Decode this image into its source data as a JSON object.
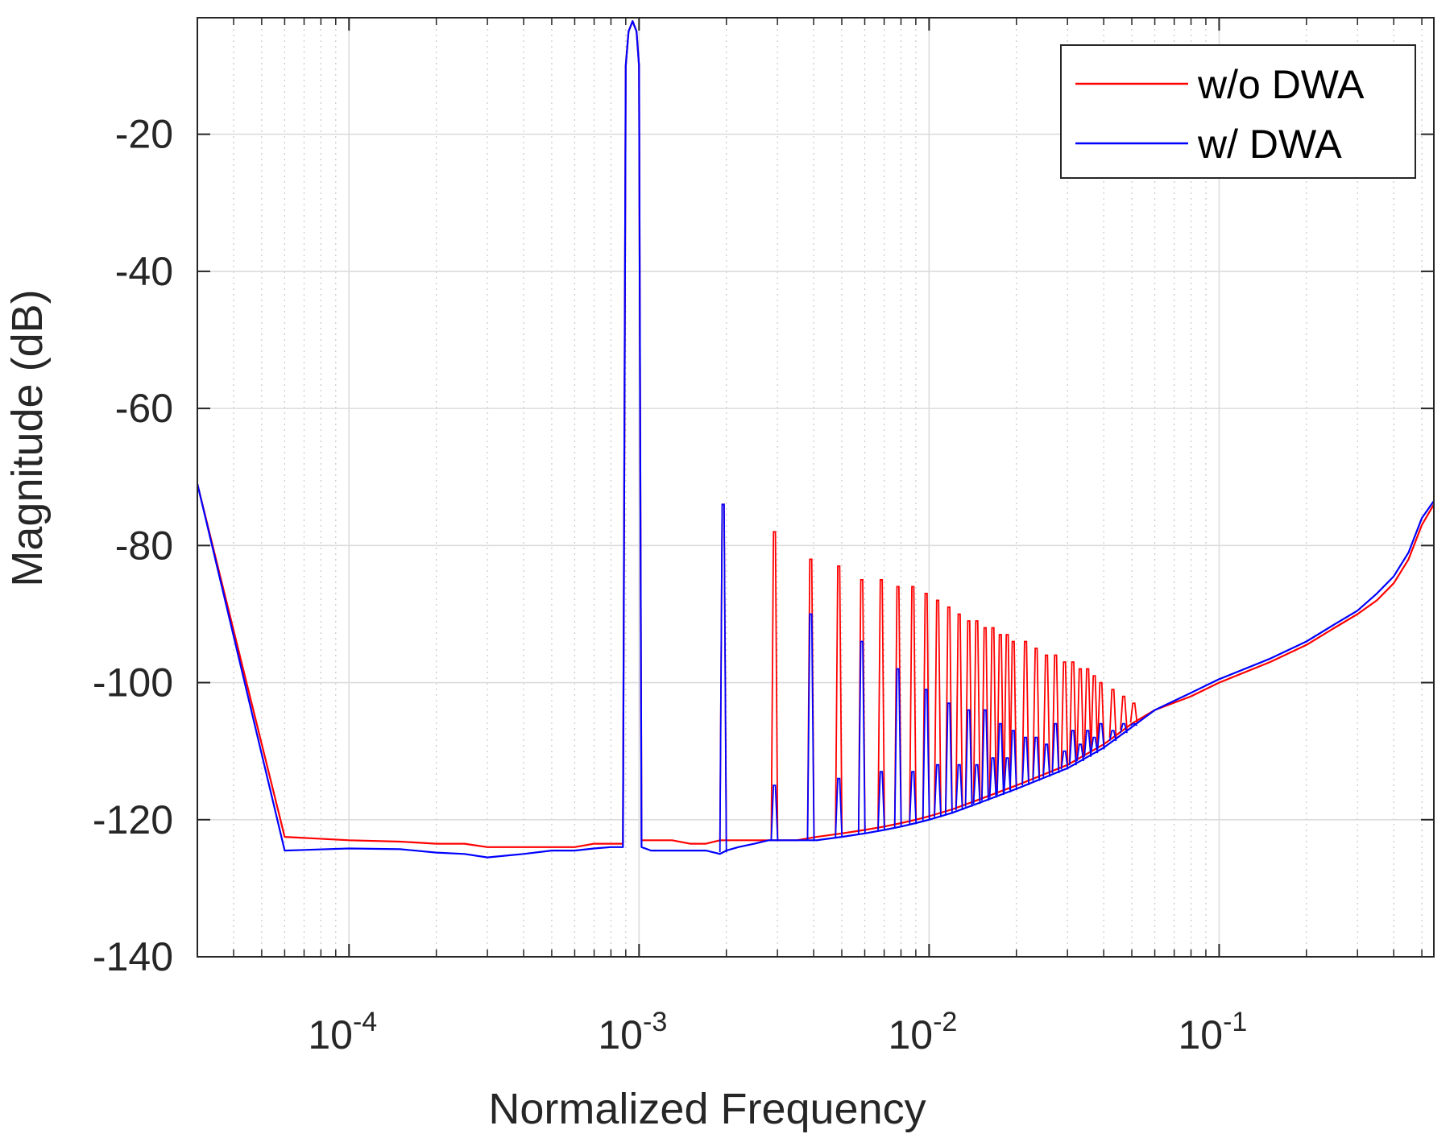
{
  "chart_data": {
    "type": "line",
    "title": "",
    "xlabel": "Normalized Frequency",
    "ylabel": "Magnitude (dB)",
    "xscale": "log",
    "xlim": [
      3e-05,
      0.55
    ],
    "ylim": [
      -140,
      -3
    ],
    "x_ticks": [
      {
        "value": 0.0001,
        "base": "10",
        "exp": "-4"
      },
      {
        "value": 0.001,
        "base": "10",
        "exp": "-3"
      },
      {
        "value": 0.01,
        "base": "10",
        "exp": "-2"
      },
      {
        "value": 0.1,
        "base": "10",
        "exp": "-1"
      }
    ],
    "y_ticks": [
      {
        "value": -20,
        "label": "-20"
      },
      {
        "value": -40,
        "label": "-40"
      },
      {
        "value": -60,
        "label": "-60"
      },
      {
        "value": -80,
        "label": "-80"
      },
      {
        "value": -100,
        "label": "-100"
      },
      {
        "value": -120,
        "label": "-120"
      },
      {
        "value": -140,
        "label": "-140"
      }
    ],
    "grid": true,
    "minor_grid": true,
    "legend_position": "top-right",
    "fundamental": {
      "x": 0.000977,
      "y": -3.5
    },
    "series": [
      {
        "name": "w/o DWA",
        "color": "#ff0000",
        "x": [
          3e-05,
          6e-05,
          0.0001,
          0.00015,
          0.0002,
          0.00025,
          0.0003,
          0.0004,
          0.0005,
          0.0006,
          0.0007,
          0.0008,
          0.00088,
          0.0009,
          0.00092,
          0.00095,
          0.00098,
          0.001,
          0.00102,
          0.0011,
          0.0013,
          0.0015,
          0.0017,
          0.0019,
          0.002,
          0.0022,
          0.0025,
          0.0028,
          0.0031,
          0.0035,
          0.0041,
          0.005,
          0.006,
          0.007,
          0.008,
          0.009,
          0.01,
          0.012,
          0.015,
          0.02,
          0.03,
          0.04,
          0.05,
          0.06,
          0.08,
          0.1,
          0.15,
          0.2,
          0.25,
          0.3,
          0.35,
          0.4,
          0.45,
          0.5,
          0.55
        ],
        "y": [
          -71,
          -122.5,
          -123,
          -123.2,
          -123.5,
          -123.5,
          -124,
          -124,
          -124,
          -124,
          -123.5,
          -123.5,
          -123.5,
          -10,
          -5,
          -3.5,
          -5,
          -10,
          -123,
          -123,
          -123,
          -123.5,
          -123.5,
          -123,
          -123,
          -123,
          -123,
          -123,
          -123,
          -123,
          -122.5,
          -122,
          -121.5,
          -121,
          -120.5,
          -120,
          -119.5,
          -118.5,
          -117,
          -115,
          -112,
          -109,
          -106,
          -104,
          -102,
          -100,
          -97,
          -94.5,
          -92,
          -90,
          -88,
          -85.5,
          -82,
          -77,
          -74
        ],
        "harmonics": [
          {
            "x": 0.00195,
            "y": -74
          },
          {
            "x": 0.00293,
            "y": -78
          },
          {
            "x": 0.00391,
            "y": -82
          },
          {
            "x": 0.00488,
            "y": -83
          },
          {
            "x": 0.00586,
            "y": -85
          },
          {
            "x": 0.00684,
            "y": -85
          },
          {
            "x": 0.00781,
            "y": -86
          },
          {
            "x": 0.00879,
            "y": -86
          },
          {
            "x": 0.00977,
            "y": -87
          },
          {
            "x": 0.0107,
            "y": -88
          },
          {
            "x": 0.0117,
            "y": -89
          },
          {
            "x": 0.0127,
            "y": -90
          },
          {
            "x": 0.0137,
            "y": -91
          },
          {
            "x": 0.0146,
            "y": -91
          },
          {
            "x": 0.0156,
            "y": -92
          },
          {
            "x": 0.0166,
            "y": -92
          },
          {
            "x": 0.0176,
            "y": -93
          },
          {
            "x": 0.0186,
            "y": -93
          },
          {
            "x": 0.0195,
            "y": -94
          },
          {
            "x": 0.0215,
            "y": -94
          },
          {
            "x": 0.0234,
            "y": -95
          },
          {
            "x": 0.0254,
            "y": -96
          },
          {
            "x": 0.0273,
            "y": -96
          },
          {
            "x": 0.0293,
            "y": -97
          },
          {
            "x": 0.0313,
            "y": -97
          },
          {
            "x": 0.0332,
            "y": -98
          },
          {
            "x": 0.0352,
            "y": -98
          },
          {
            "x": 0.0371,
            "y": -99
          },
          {
            "x": 0.0391,
            "y": -100
          },
          {
            "x": 0.043,
            "y": -101
          },
          {
            "x": 0.0469,
            "y": -102
          },
          {
            "x": 0.0508,
            "y": -103
          }
        ]
      },
      {
        "name": "w/ DWA",
        "color": "#0000ff",
        "x": [
          3e-05,
          6e-05,
          0.0001,
          0.00015,
          0.0002,
          0.00025,
          0.0003,
          0.0004,
          0.0005,
          0.0006,
          0.0007,
          0.0008,
          0.00088,
          0.0009,
          0.00092,
          0.00095,
          0.00098,
          0.001,
          0.00102,
          0.0011,
          0.0013,
          0.0015,
          0.0017,
          0.0019,
          0.002,
          0.0022,
          0.0025,
          0.0028,
          0.0031,
          0.0035,
          0.0041,
          0.005,
          0.006,
          0.007,
          0.008,
          0.009,
          0.01,
          0.012,
          0.015,
          0.02,
          0.03,
          0.04,
          0.05,
          0.06,
          0.08,
          0.1,
          0.15,
          0.2,
          0.25,
          0.3,
          0.35,
          0.4,
          0.45,
          0.5,
          0.55
        ],
        "y": [
          -71,
          -124.5,
          -124.2,
          -124.3,
          -124.8,
          -125,
          -125.5,
          -125,
          -124.5,
          -124.5,
          -124.2,
          -124,
          -124,
          -10,
          -5,
          -3.5,
          -5,
          -10,
          -124,
          -124.5,
          -124.5,
          -124.5,
          -124.5,
          -125,
          -124.5,
          -124,
          -123.5,
          -123,
          -123,
          -123,
          -123,
          -122.5,
          -122,
          -121.5,
          -121,
          -120.5,
          -120,
          -119,
          -117.5,
          -115.5,
          -112.5,
          -109.5,
          -106.5,
          -104,
          -101.5,
          -99.5,
          -96.5,
          -94,
          -91.5,
          -89.5,
          -87,
          -84.5,
          -81,
          -76,
          -73.5
        ],
        "harmonics": [
          {
            "x": 0.00195,
            "y": -74
          },
          {
            "x": 0.00293,
            "y": -115
          },
          {
            "x": 0.00391,
            "y": -90
          },
          {
            "x": 0.00488,
            "y": -114
          },
          {
            "x": 0.00586,
            "y": -94
          },
          {
            "x": 0.00684,
            "y": -113
          },
          {
            "x": 0.00781,
            "y": -98
          },
          {
            "x": 0.00879,
            "y": -113
          },
          {
            "x": 0.00977,
            "y": -101
          },
          {
            "x": 0.0107,
            "y": -112
          },
          {
            "x": 0.0117,
            "y": -103
          },
          {
            "x": 0.0127,
            "y": -112
          },
          {
            "x": 0.0137,
            "y": -104
          },
          {
            "x": 0.0146,
            "y": -112
          },
          {
            "x": 0.0156,
            "y": -104
          },
          {
            "x": 0.0166,
            "y": -111
          },
          {
            "x": 0.0176,
            "y": -106
          },
          {
            "x": 0.0186,
            "y": -111
          },
          {
            "x": 0.0195,
            "y": -107
          },
          {
            "x": 0.0215,
            "y": -108
          },
          {
            "x": 0.0234,
            "y": -108
          },
          {
            "x": 0.0254,
            "y": -109
          },
          {
            "x": 0.0273,
            "y": -106
          },
          {
            "x": 0.0293,
            "y": -110
          },
          {
            "x": 0.0313,
            "y": -107
          },
          {
            "x": 0.0332,
            "y": -109
          },
          {
            "x": 0.0352,
            "y": -107
          },
          {
            "x": 0.0371,
            "y": -108
          },
          {
            "x": 0.0391,
            "y": -106
          },
          {
            "x": 0.043,
            "y": -107
          },
          {
            "x": 0.0469,
            "y": -106
          },
          {
            "x": 0.0508,
            "y": -106
          }
        ]
      }
    ]
  }
}
